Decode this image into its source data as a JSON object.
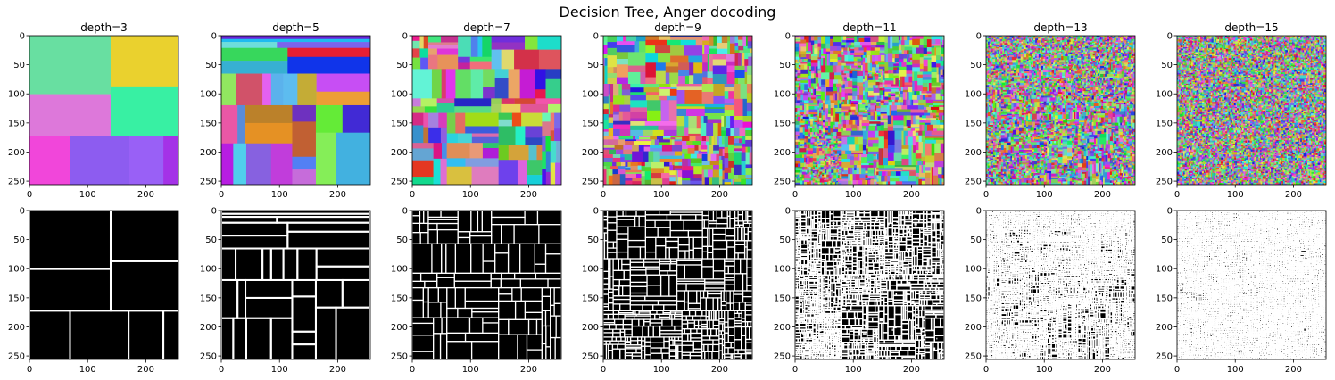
{
  "figure": {
    "title": "Decision Tree, Anger docoding"
  },
  "chart_data": {
    "type": "heatmap",
    "title": "Decision Tree, Anger docoding",
    "rows": [
      "segmentation-colored",
      "segmentation-boundaries"
    ],
    "panels": [
      {
        "title": "depth=3",
        "depth": 3
      },
      {
        "title": "depth=5",
        "depth": 5
      },
      {
        "title": "depth=7",
        "depth": 7
      },
      {
        "title": "depth=9",
        "depth": 9
      },
      {
        "title": "depth=11",
        "depth": 11
      },
      {
        "title": "depth=13",
        "depth": 13
      },
      {
        "title": "depth=15",
        "depth": 15
      }
    ],
    "xlim": [
      0,
      256
    ],
    "ylim": [
      256,
      0
    ],
    "xticks": [
      0,
      100,
      200
    ],
    "yticks": [
      0,
      50,
      100,
      150,
      200,
      250
    ],
    "boundary_colors": {
      "background": "#000000",
      "line": "#ffffff"
    }
  }
}
